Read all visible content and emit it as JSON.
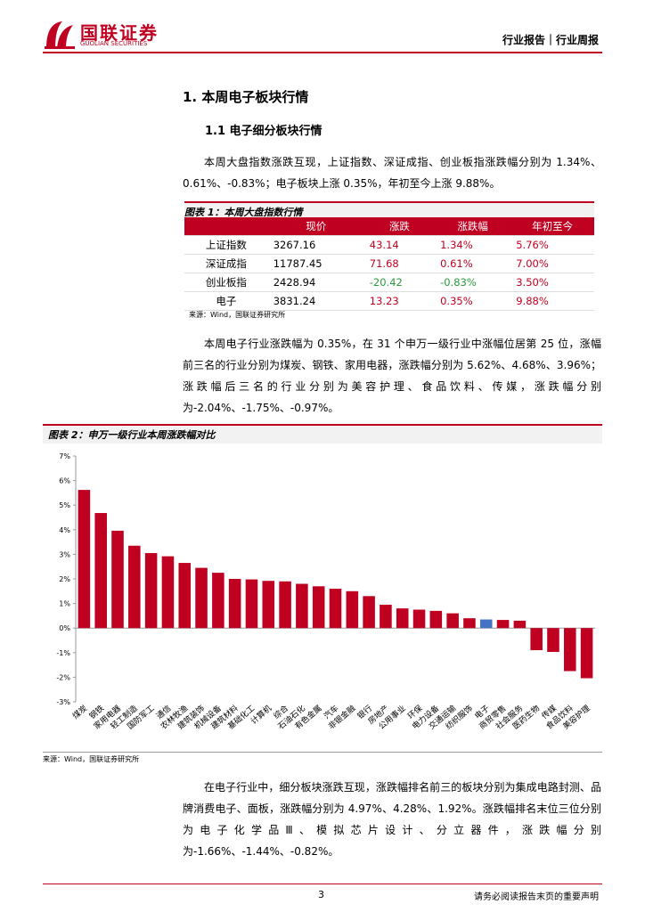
{
  "header": {
    "logo_cn": "国联证券",
    "logo_en": "GUOLIAN SECURITIES",
    "tag": "行业报告｜行业周报"
  },
  "section": {
    "title": "1. 本周电子板块行情",
    "subtitle": "1.1 电子细分板块行情"
  },
  "para1": "本周大盘指数涨跌互现，上证指数、深证成指、创业板指涨跌幅分别为 1.34%、0.61%、-0.83%；电子板块上涨 0.35%，年初至今上涨 9.88%。",
  "table": {
    "caption": "图表 1：本周大盘指数行情",
    "header": [
      "现价",
      "涨跌",
      "涨跌幅",
      "年初至今"
    ],
    "rows": [
      [
        "上证指数",
        "3267.16",
        "43.14",
        "1.34%",
        "5.76%"
      ],
      [
        "深证成指",
        "11787.45",
        "71.68",
        "0.61%",
        "7.00%"
      ],
      [
        "创业板指",
        "2428.94",
        "-20.42",
        "-0.83%",
        "3.50%"
      ],
      [
        "电子",
        "3831.24",
        "13.23",
        "0.35%",
        "9.88%"
      ]
    ],
    "source": "来源：Wind，国联证券研究所"
  },
  "para2": "本周电子行业涨跌幅为 0.35%，在 31 个申万一级行业中涨幅位居第 25 位，涨幅前三名的行业分别为煤炭、钢铁、家用电器，涨跌幅分别为 5.62%、4.68%、3.96%；涨跌幅后三名的行业分别为美容护理、食品饮料、传媒，涨跌幅分别为-2.04%、-1.75%、-0.97%。",
  "chart_data": {
    "type": "bar",
    "title": "图表 2：申万一级行业本周涨跌幅对比",
    "categories": [
      "煤炭",
      "钢铁",
      "家用电器",
      "轻工制造",
      "国防军工",
      "通信",
      "农林牧渔",
      "建筑装饰",
      "机械设备",
      "建筑材料",
      "基础化工",
      "计算机",
      "综合",
      "石油石化",
      "有色金属",
      "汽车",
      "非银金融",
      "银行",
      "房地产",
      "公用事业",
      "环保",
      "电力设备",
      "交通运输",
      "纺织服饰",
      "电子",
      "商贸零售",
      "社会服务",
      "医药生物",
      "传媒",
      "食品饮料",
      "美容护理"
    ],
    "values": [
      5.62,
      4.68,
      3.96,
      3.35,
      3.05,
      2.92,
      2.65,
      2.45,
      2.25,
      2.0,
      1.98,
      1.92,
      1.9,
      1.8,
      1.7,
      1.6,
      1.5,
      1.3,
      0.95,
      0.8,
      0.75,
      0.7,
      0.6,
      0.4,
      0.35,
      0.33,
      0.3,
      -0.9,
      -0.97,
      -1.75,
      -2.04
    ],
    "colors": [
      "#c00020",
      "#c00020",
      "#c00020",
      "#c00020",
      "#c00020",
      "#c00020",
      "#c00020",
      "#c00020",
      "#c00020",
      "#c00020",
      "#c00020",
      "#c00020",
      "#c00020",
      "#c00020",
      "#c00020",
      "#c00020",
      "#c00020",
      "#c00020",
      "#c00020",
      "#c00020",
      "#c00020",
      "#c00020",
      "#c00020",
      "#c00020",
      "#4472c4",
      "#c00020",
      "#c00020",
      "#c00020",
      "#c00020",
      "#c00020",
      "#c00020"
    ],
    "ylim": [
      -3,
      7
    ],
    "yticks": [
      {
        "value": -3,
        "label": "-3%"
      },
      {
        "value": -2,
        "label": "-2%"
      },
      {
        "value": -1,
        "label": "-1%"
      },
      {
        "value": 0,
        "label": "0%"
      },
      {
        "value": 1,
        "label": "1%"
      },
      {
        "value": 2,
        "label": "2%"
      },
      {
        "value": 3,
        "label": "3%"
      },
      {
        "value": 4,
        "label": "4%"
      },
      {
        "value": 5,
        "label": "5%"
      },
      {
        "value": 6,
        "label": "6%"
      },
      {
        "value": 7,
        "label": "7%"
      }
    ],
    "source": "来源：Wind，国联证券研究所"
  },
  "para3": "在电子行业中，细分板块涨跌互现，涨跌幅排名前三的板块分别为集成电路封测、品牌消费电子、面板，涨跌幅分别为 4.97%、4.28%、1.92%。涨跌幅排名末位三位分别为电子化学品Ⅲ、模拟芯片设计、分立器件，涨跌幅分别为-1.66%、-1.44%、-0.82%。",
  "footer": {
    "page": "3",
    "note": "请务必阅读报告末页的重要声明"
  }
}
